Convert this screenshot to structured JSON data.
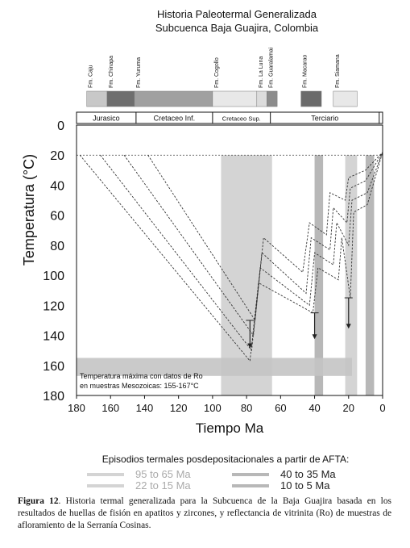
{
  "chart_data": {
    "type": "line",
    "title": "Historia Paleotermal Generalizada",
    "subtitle": "Subcuenca Baja Guajira, Colombia",
    "xlabel": "Tiempo Ma",
    "ylabel": "Temperatura (°C)",
    "xlim": [
      180,
      0
    ],
    "ylim": [
      0,
      180
    ],
    "y_inverted": true,
    "xticks": [
      180,
      160,
      140,
      120,
      100,
      80,
      60,
      40,
      20,
      0
    ],
    "yticks": [
      0,
      20,
      40,
      60,
      80,
      100,
      120,
      140,
      160,
      180
    ],
    "periods": [
      {
        "label": "Jurasico",
        "start": 180,
        "end": 145
      },
      {
        "label": "Cretaceo Inf.",
        "start": 145,
        "end": 100
      },
      {
        "label": "Cretaceo Sup.",
        "start": 100,
        "end": 66
      },
      {
        "label": "Terciario",
        "start": 66,
        "end": 2
      },
      {
        "label": "",
        "start": 2,
        "end": 0
      }
    ],
    "formations": [
      {
        "label": "Fm. Caju",
        "start": 174,
        "end": 162,
        "color": "#c8c8c8"
      },
      {
        "label": "Fm. Chinapa",
        "start": 162,
        "end": 146,
        "color": "#6e6e6e"
      },
      {
        "label": "Fm. Yuruma",
        "start": 146,
        "end": 100,
        "color": "#a0a0a0"
      },
      {
        "label": "Fm. Cogollo",
        "start": 100,
        "end": 74,
        "color": "#e8e8e8"
      },
      {
        "label": "Fm. La Luna",
        "start": 74,
        "end": 68,
        "color": "#dcdcdc"
      },
      {
        "label": "Fm. Guaralamai",
        "start": 68,
        "end": 62,
        "color": "#8c8c8c"
      },
      {
        "label": "Fm. Macarao",
        "start": 48,
        "end": 36,
        "color": "#6a6a6a"
      },
      {
        "label": "Fm. Siamana",
        "start": 29,
        "end": 15,
        "color": "#e8e8e8"
      }
    ],
    "thermal_episodes": [
      {
        "label": "95 to 65 Ma",
        "start": 95,
        "end": 65,
        "color": "#d4d4d4"
      },
      {
        "label": "40 to 35 Ma",
        "start": 40,
        "end": 35,
        "color": "#b8b8b8"
      },
      {
        "label": "22 to 15 Ma",
        "start": 22,
        "end": 15,
        "color": "#d4d4d4"
      },
      {
        "label": "10 to 5 Ma",
        "start": 10,
        "end": 5,
        "color": "#b8b8b8"
      }
    ],
    "max_temp_band": {
      "ymin": 155,
      "ymax": 167,
      "xstart": 180,
      "xend": 18,
      "color": "#c4c4c4"
    },
    "annotation": {
      "line1": "Temperatura máxima con datos de Ro",
      "line2": "en muestras Mesozoicas: 155-167°C"
    },
    "series": [
      {
        "points": [
          [
            138,
            20
          ],
          [
            75,
            130
          ],
          [
            70,
            75
          ],
          [
            47,
            98
          ],
          [
            43,
            65
          ],
          [
            33,
            73
          ],
          [
            31,
            45
          ],
          [
            22,
            50
          ],
          [
            20,
            35
          ],
          [
            10,
            30
          ],
          [
            0,
            18
          ]
        ]
      },
      {
        "points": [
          [
            152,
            20
          ],
          [
            76,
            140
          ],
          [
            71,
            85
          ],
          [
            45,
            112
          ],
          [
            42,
            75
          ],
          [
            31,
            83
          ],
          [
            29,
            55
          ],
          [
            21,
            65
          ],
          [
            19,
            42
          ],
          [
            10,
            37
          ],
          [
            0,
            18
          ]
        ]
      },
      {
        "points": [
          [
            166,
            20
          ],
          [
            77,
            150
          ],
          [
            72,
            95
          ],
          [
            43,
            120
          ],
          [
            40,
            85
          ],
          [
            29,
            93
          ],
          [
            27,
            65
          ],
          [
            20,
            80
          ],
          [
            18,
            50
          ],
          [
            9,
            45
          ],
          [
            0,
            18
          ]
        ]
      },
      {
        "points": [
          [
            178,
            20
          ],
          [
            78,
            157
          ],
          [
            73,
            105
          ],
          [
            41,
            125
          ],
          [
            38,
            95
          ],
          [
            26,
            103
          ],
          [
            24,
            75
          ],
          [
            19,
            115
          ],
          [
            17,
            58
          ],
          [
            9,
            53
          ],
          [
            0,
            18
          ]
        ]
      }
    ],
    "afta_arrows": [
      {
        "x": 78,
        "from": 130,
        "to": 148
      },
      {
        "x": 40,
        "from": 125,
        "to": 142
      },
      {
        "x": 20,
        "from": 115,
        "to": 135
      }
    ],
    "legend_title": "Episodios termales posdepositacionales a partir de AFTA:"
  },
  "caption": {
    "bold": "Figura 12",
    "text": ". Historia termal generalizada para la Subcuenca de la Baja Guajira basada en los resultados de huellas de fisión en apatitos y zircones, y reflectancia de vitrinita (Ro) de muestras de afloramiento de la Serranía Cosinas."
  }
}
